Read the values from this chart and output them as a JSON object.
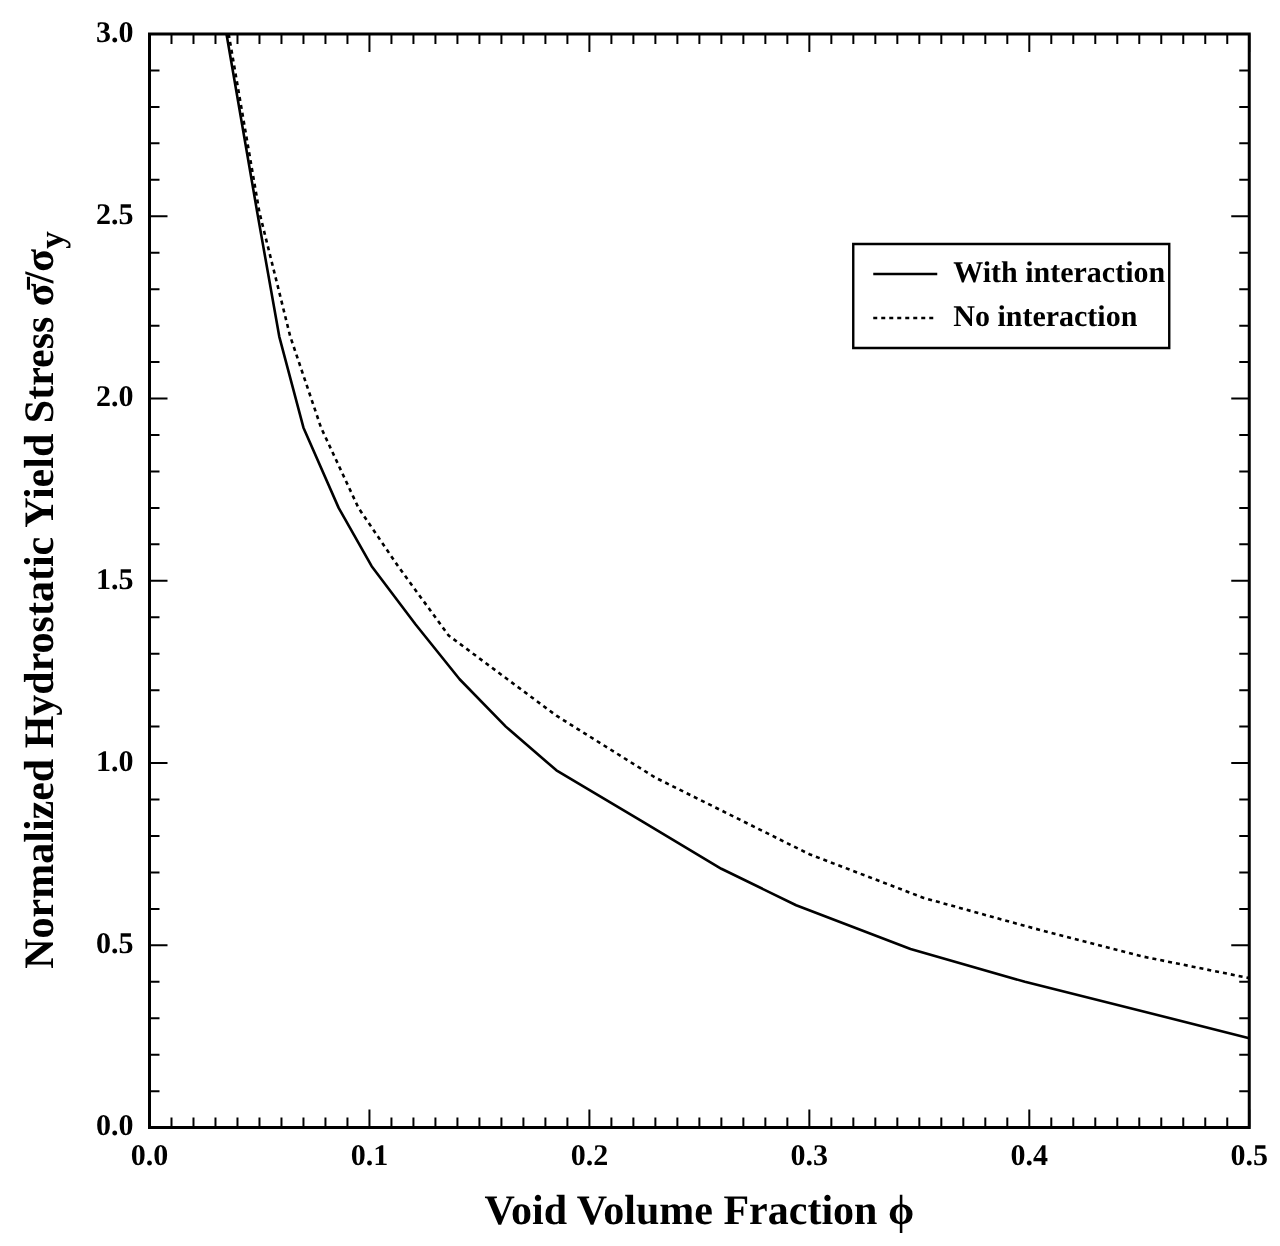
{
  "chart_data": {
    "type": "line",
    "xlabel": "Void Volume Fraction ϕ",
    "ylabel": "Normalized Hydrostatic Yield Stress σ̄/σ$_{y}$",
    "xlim": [
      0,
      0.5
    ],
    "ylim": [
      0,
      3
    ],
    "xticks": [
      {
        "value": 0,
        "label": "0.0"
      },
      {
        "value": 0.01,
        "label": null
      },
      {
        "value": 0.02,
        "label": null
      },
      {
        "value": 0.03,
        "label": null
      },
      {
        "value": 0.04,
        "label": null
      },
      {
        "value": 0.05,
        "label": null
      },
      {
        "value": 0.06,
        "label": null
      },
      {
        "value": 0.07,
        "label": null
      },
      {
        "value": 0.08,
        "label": null
      },
      {
        "value": 0.09,
        "label": null
      },
      {
        "value": 0.1,
        "label": "0.1"
      },
      {
        "value": 0.11,
        "label": null
      },
      {
        "value": 0.12,
        "label": null
      },
      {
        "value": 0.13,
        "label": null
      },
      {
        "value": 0.14,
        "label": null
      },
      {
        "value": 0.15,
        "label": null
      },
      {
        "value": 0.16,
        "label": null
      },
      {
        "value": 0.17,
        "label": null
      },
      {
        "value": 0.18,
        "label": null
      },
      {
        "value": 0.19,
        "label": null
      },
      {
        "value": 0.2,
        "label": "0.2"
      },
      {
        "value": 0.21,
        "label": null
      },
      {
        "value": 0.22,
        "label": null
      },
      {
        "value": 0.23,
        "label": null
      },
      {
        "value": 0.24,
        "label": null
      },
      {
        "value": 0.25,
        "label": null
      },
      {
        "value": 0.26,
        "label": null
      },
      {
        "value": 0.27,
        "label": null
      },
      {
        "value": 0.28,
        "label": null
      },
      {
        "value": 0.29,
        "label": null
      },
      {
        "value": 0.3,
        "label": "0.3"
      },
      {
        "value": 0.31,
        "label": null
      },
      {
        "value": 0.32,
        "label": null
      },
      {
        "value": 0.33,
        "label": null
      },
      {
        "value": 0.34,
        "label": null
      },
      {
        "value": 0.35,
        "label": null
      },
      {
        "value": 0.36,
        "label": null
      },
      {
        "value": 0.37,
        "label": null
      },
      {
        "value": 0.38,
        "label": null
      },
      {
        "value": 0.39,
        "label": null
      },
      {
        "value": 0.4,
        "label": "0.4"
      },
      {
        "value": 0.41,
        "label": null
      },
      {
        "value": 0.42,
        "label": null
      },
      {
        "value": 0.43,
        "label": null
      },
      {
        "value": 0.44,
        "label": null
      },
      {
        "value": 0.45,
        "label": null
      },
      {
        "value": 0.46,
        "label": null
      },
      {
        "value": 0.47,
        "label": null
      },
      {
        "value": 0.48,
        "label": null
      },
      {
        "value": 0.49,
        "label": null
      },
      {
        "value": 0.5,
        "label": "0.5"
      }
    ],
    "yticks": [
      {
        "value": 0,
        "label": "0.0"
      },
      {
        "value": 0.1,
        "label": null
      },
      {
        "value": 0.2,
        "label": null
      },
      {
        "value": 0.3,
        "label": null
      },
      {
        "value": 0.4,
        "label": null
      },
      {
        "value": 0.5,
        "label": "0.5"
      },
      {
        "value": 0.6,
        "label": null
      },
      {
        "value": 0.7,
        "label": null
      },
      {
        "value": 0.8,
        "label": null
      },
      {
        "value": 0.9,
        "label": null
      },
      {
        "value": 1,
        "label": "1.0"
      },
      {
        "value": 1.1,
        "label": null
      },
      {
        "value": 1.2,
        "label": null
      },
      {
        "value": 1.3,
        "label": null
      },
      {
        "value": 1.4,
        "label": null
      },
      {
        "value": 1.5,
        "label": "1.5"
      },
      {
        "value": 1.6,
        "label": null
      },
      {
        "value": 1.7,
        "label": null
      },
      {
        "value": 1.8,
        "label": null
      },
      {
        "value": 1.9,
        "label": null
      },
      {
        "value": 2,
        "label": "2.0"
      },
      {
        "value": 2.1,
        "label": null
      },
      {
        "value": 2.2,
        "label": null
      },
      {
        "value": 2.3,
        "label": null
      },
      {
        "value": 2.4,
        "label": null
      },
      {
        "value": 2.5,
        "label": "2.5"
      },
      {
        "value": 2.6,
        "label": null
      },
      {
        "value": 2.7,
        "label": null
      },
      {
        "value": 2.8,
        "label": null
      },
      {
        "value": 2.9,
        "label": null
      },
      {
        "value": 3,
        "label": "3.0"
      }
    ],
    "legend": "top right",
    "marker": "none",
    "series": [
      {
        "name": "With interaction",
        "color": "#000000",
        "line_style": "solid",
        "x": [
          0.035,
          0.049,
          0.059,
          0.07,
          0.086,
          0.101,
          0.121,
          0.141,
          0.162,
          0.185,
          0.224,
          0.26,
          0.294,
          0.346,
          0.398,
          0.451,
          0.5
        ],
        "values": [
          3.0,
          2.51,
          2.17,
          1.92,
          1.7,
          1.54,
          1.38,
          1.23,
          1.1,
          0.98,
          0.84,
          0.71,
          0.61,
          0.49,
          0.4,
          0.32,
          0.245
        ]
      },
      {
        "name": "No interaction",
        "color": "#000000",
        "line_style": "dotted",
        "x": [
          0.036,
          0.05,
          0.064,
          0.078,
          0.095,
          0.113,
          0.136,
          0.185,
          0.23,
          0.3,
          0.352,
          0.4,
          0.451,
          0.5
        ],
        "values": [
          3.0,
          2.51,
          2.17,
          1.92,
          1.7,
          1.54,
          1.35,
          1.13,
          0.96,
          0.75,
          0.63,
          0.55,
          0.47,
          0.41
        ]
      }
    ]
  }
}
